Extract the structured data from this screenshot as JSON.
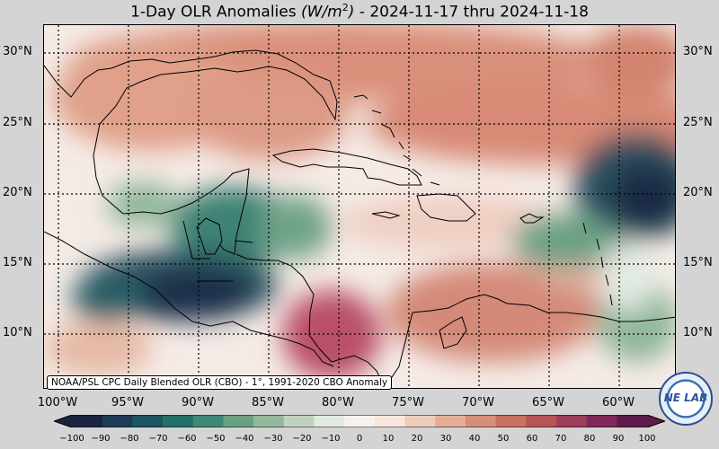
{
  "title": {
    "main": "1-Day OLR Anomalies",
    "unit_base": "(W/m",
    "unit_exp": "2",
    "unit_close": ")",
    "dates": " - 2024-11-17 thru 2024-11-18"
  },
  "lat_labels": [
    "30°N",
    "25°N",
    "20°N",
    "15°N",
    "10°N"
  ],
  "lon_labels": [
    "100°W",
    "95°W",
    "90°W",
    "85°W",
    "80°W",
    "75°W",
    "70°W",
    "65°W",
    "60°W"
  ],
  "source_note": "NOAA/PSL CPC Daily Blended OLR (CBO) - 1°, 1991-2020 CBO Anomaly",
  "colorbar": {
    "ticks": [
      "−100",
      "−90",
      "−80",
      "−70",
      "−60",
      "−50",
      "−40",
      "−30",
      "−20",
      "−10",
      "0",
      "10",
      "20",
      "30",
      "40",
      "50",
      "60",
      "70",
      "80",
      "90",
      "100"
    ],
    "colors": [
      "#1c2340",
      "#1e3a55",
      "#1c5560",
      "#237068",
      "#3f8877",
      "#6aa184",
      "#94b89b",
      "#bfd2bf",
      "#e2ebe3",
      "#f6f2ee",
      "#f7e6dd",
      "#eecdbd",
      "#e3ae98",
      "#d78e78",
      "#c9705f",
      "#b65457",
      "#9c3d5a",
      "#80275a",
      "#5e1a4a"
    ]
  },
  "logo_text": "NE LAB"
}
